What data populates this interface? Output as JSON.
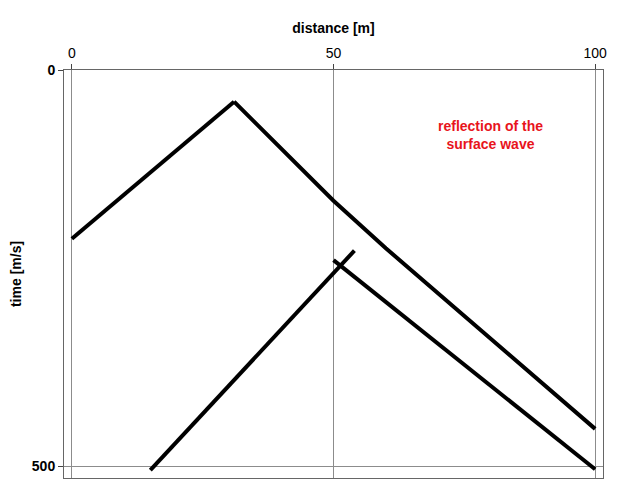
{
  "chart_data": {
    "type": "line",
    "x_label": "distance [m]",
    "y_label": "time [m/s]",
    "xlim": [
      -1.5,
      101.5
    ],
    "xticks": [
      0,
      50,
      100
    ],
    "ylim": [
      515,
      0
    ],
    "yticks": [
      0,
      500
    ],
    "grid": true,
    "line_style": "solid",
    "series": [
      {
        "color": "#000000",
        "x": [
          0,
          10,
          20,
          31
        ],
        "values": [
          213,
          157,
          101,
          40
        ]
      },
      {
        "color": "#000000",
        "x": [
          31,
          40,
          50,
          60,
          70,
          80,
          90,
          100
        ],
        "values": [
          40,
          100,
          165,
          225,
          282,
          338,
          395,
          453
        ]
      },
      {
        "color": "#000000",
        "x": [
          50,
          60,
          70,
          80,
          90,
          100
        ],
        "values": [
          240,
          293,
          346,
          398,
          451,
          504
        ]
      },
      {
        "color": "#000000",
        "x": [
          54,
          45,
          35,
          25,
          15
        ],
        "values": [
          228,
          292,
          363,
          434,
          505
        ]
      }
    ],
    "annotations": [
      {
        "text": "reflection of the surface wave",
        "x": 80,
        "y": 82,
        "color": "#e8141c"
      }
    ]
  }
}
